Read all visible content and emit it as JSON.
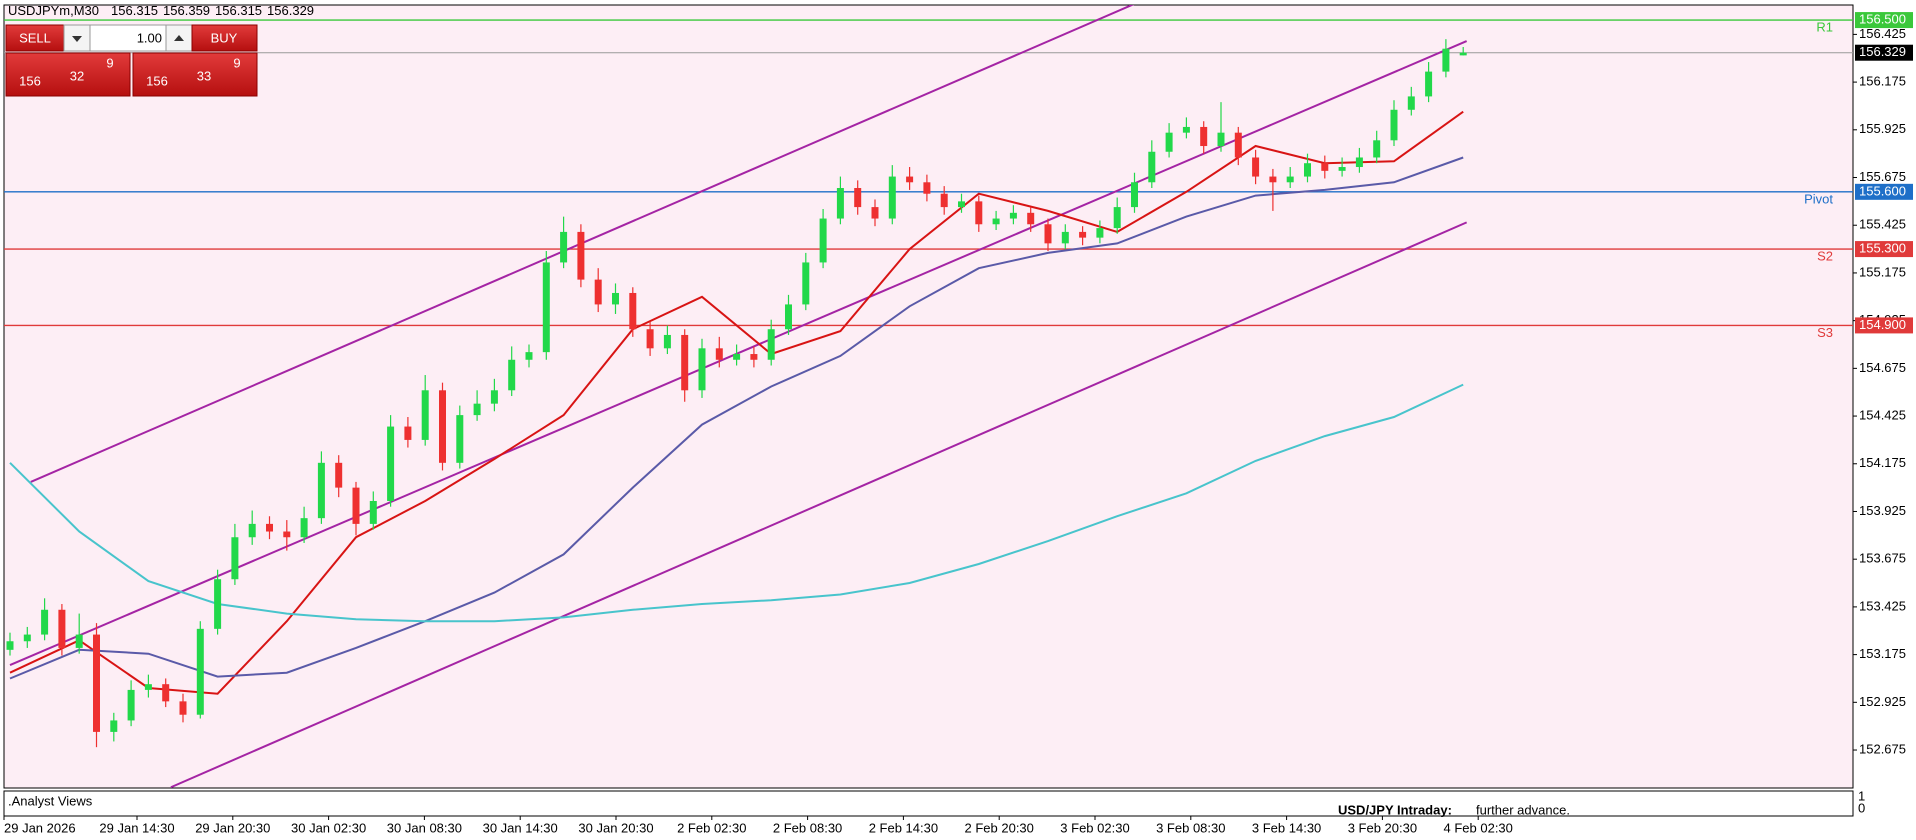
{
  "header": {
    "symbol": "USDJPYm,M30",
    "ohlc": [
      156.315,
      156.359,
      156.315,
      156.329
    ]
  },
  "trade_panel": {
    "sell": "SELL",
    "buy": "BUY",
    "volume": "1.00",
    "sell_price": {
      "big": "156",
      "pips": "32",
      "fraction": "9"
    },
    "buy_price": {
      "big": "156",
      "pips": "33",
      "fraction": "9"
    }
  },
  "indicator_pane": {
    "title": ".Analyst Views",
    "headline": "USD/JPY Intraday:",
    "text": "further advance.",
    "axis": [
      "1",
      "0"
    ]
  },
  "chart_data": {
    "type": "candlestick",
    "ylim": [
      152.476,
      156.579
    ],
    "yticks": [
      156.425,
      156.175,
      155.925,
      155.675,
      155.425,
      155.175,
      154.925,
      154.675,
      154.425,
      154.175,
      153.925,
      153.675,
      153.425,
      153.175,
      152.925,
      152.675
    ],
    "x_labels": [
      "29 Jan 2026",
      "29 Jan 14:30",
      "29 Jan 20:30",
      "30 Jan 02:30",
      "30 Jan 08:30",
      "30 Jan 14:30",
      "30 Jan 20:30",
      "2 Feb 02:30",
      "2 Feb 08:30",
      "2 Feb 14:30",
      "2 Feb 20:30",
      "3 Feb 02:30",
      "3 Feb 08:30",
      "3 Feb 14:30",
      "3 Feb 20:30",
      "4 Feb 02:30"
    ],
    "up_color": "#22d84a",
    "down_color": "#ee3030",
    "candles": [
      [
        153.2,
        153.29,
        153.17,
        153.245
      ],
      [
        153.245,
        153.32,
        153.21,
        153.28
      ],
      [
        153.28,
        153.47,
        153.25,
        153.41
      ],
      [
        153.41,
        153.44,
        153.17,
        153.21
      ],
      [
        153.21,
        153.39,
        153.18,
        153.28
      ],
      [
        153.28,
        153.34,
        152.69,
        152.77
      ],
      [
        152.77,
        152.87,
        152.72,
        152.83
      ],
      [
        152.83,
        153.04,
        152.8,
        152.99
      ],
      [
        152.99,
        153.07,
        152.95,
        153.02
      ],
      [
        153.02,
        153.05,
        152.9,
        152.93
      ],
      [
        152.93,
        152.97,
        152.82,
        152.86
      ],
      [
        152.86,
        153.35,
        152.84,
        153.31
      ],
      [
        153.31,
        153.62,
        153.28,
        153.57
      ],
      [
        153.57,
        153.86,
        153.54,
        153.79
      ],
      [
        153.79,
        153.93,
        153.75,
        153.86
      ],
      [
        153.86,
        153.9,
        153.78,
        153.82
      ],
      [
        153.82,
        153.88,
        153.72,
        153.79
      ],
      [
        153.79,
        153.95,
        153.76,
        153.89
      ],
      [
        153.89,
        154.24,
        153.86,
        154.18
      ],
      [
        154.18,
        154.22,
        154.0,
        154.05
      ],
      [
        154.05,
        154.08,
        153.8,
        153.86
      ],
      [
        153.86,
        154.03,
        153.83,
        153.98
      ],
      [
        153.98,
        154.43,
        153.95,
        154.37
      ],
      [
        154.37,
        154.42,
        154.26,
        154.3
      ],
      [
        154.3,
        154.64,
        154.27,
        154.56
      ],
      [
        154.56,
        154.6,
        154.14,
        154.18
      ],
      [
        154.18,
        154.48,
        154.15,
        154.43
      ],
      [
        154.43,
        154.56,
        154.4,
        154.49
      ],
      [
        154.49,
        154.62,
        154.45,
        154.56
      ],
      [
        154.56,
        154.79,
        154.53,
        154.72
      ],
      [
        154.72,
        154.8,
        154.68,
        154.76
      ],
      [
        154.76,
        155.29,
        154.72,
        155.23
      ],
      [
        155.23,
        155.47,
        155.2,
        155.39
      ],
      [
        155.39,
        155.43,
        155.1,
        155.14
      ],
      [
        155.14,
        155.2,
        154.97,
        155.01
      ],
      [
        155.01,
        155.12,
        154.96,
        155.07
      ],
      [
        155.07,
        155.1,
        154.84,
        154.88
      ],
      [
        154.88,
        154.92,
        154.74,
        154.78
      ],
      [
        154.78,
        154.9,
        154.75,
        154.85
      ],
      [
        154.85,
        154.88,
        154.5,
        154.56
      ],
      [
        154.56,
        154.83,
        154.52,
        154.78
      ],
      [
        154.78,
        154.84,
        154.68,
        154.72
      ],
      [
        154.72,
        154.8,
        154.69,
        154.75
      ],
      [
        154.75,
        154.79,
        154.68,
        154.72
      ],
      [
        154.72,
        154.93,
        154.69,
        154.88
      ],
      [
        154.88,
        155.06,
        154.85,
        155.01
      ],
      [
        155.01,
        155.28,
        154.98,
        155.23
      ],
      [
        155.23,
        155.51,
        155.2,
        155.46
      ],
      [
        155.46,
        155.68,
        155.43,
        155.62
      ],
      [
        155.62,
        155.66,
        155.48,
        155.52
      ],
      [
        155.52,
        155.56,
        155.42,
        155.46
      ],
      [
        155.46,
        155.74,
        155.43,
        155.68
      ],
      [
        155.68,
        155.73,
        155.61,
        155.65
      ],
      [
        155.65,
        155.69,
        155.55,
        155.59
      ],
      [
        155.59,
        155.63,
        155.48,
        155.52
      ],
      [
        155.52,
        155.59,
        155.49,
        155.55
      ],
      [
        155.55,
        155.58,
        155.39,
        155.43
      ],
      [
        155.43,
        155.5,
        155.4,
        155.46
      ],
      [
        155.46,
        155.53,
        155.43,
        155.49
      ],
      [
        155.49,
        155.52,
        155.39,
        155.43
      ],
      [
        155.43,
        155.46,
        155.29,
        155.33
      ],
      [
        155.33,
        155.43,
        155.3,
        155.39
      ],
      [
        155.39,
        155.42,
        155.32,
        155.36
      ],
      [
        155.36,
        155.45,
        155.33,
        155.41
      ],
      [
        155.41,
        155.57,
        155.38,
        155.52
      ],
      [
        155.52,
        155.7,
        155.49,
        155.65
      ],
      [
        155.65,
        155.87,
        155.62,
        155.81
      ],
      [
        155.81,
        155.96,
        155.78,
        155.91
      ],
      [
        155.91,
        155.99,
        155.88,
        155.94
      ],
      [
        155.94,
        155.97,
        155.8,
        155.84
      ],
      [
        155.84,
        156.07,
        155.81,
        155.91
      ],
      [
        155.91,
        155.94,
        155.74,
        155.78
      ],
      [
        155.78,
        155.82,
        155.64,
        155.68
      ],
      [
        155.68,
        155.72,
        155.5,
        155.65
      ],
      [
        155.65,
        155.73,
        155.62,
        155.68
      ],
      [
        155.68,
        155.8,
        155.65,
        155.75
      ],
      [
        155.75,
        155.79,
        155.67,
        155.71
      ],
      [
        155.71,
        155.78,
        155.68,
        155.73
      ],
      [
        155.73,
        155.83,
        155.7,
        155.78
      ],
      [
        155.78,
        155.92,
        155.75,
        155.87
      ],
      [
        155.87,
        156.08,
        155.84,
        156.03
      ],
      [
        156.03,
        156.15,
        156.0,
        156.1
      ],
      [
        156.1,
        156.28,
        156.07,
        156.23
      ],
      [
        156.23,
        156.4,
        156.2,
        156.35
      ],
      [
        156.315,
        156.359,
        156.315,
        156.329
      ]
    ],
    "ma_x": [
      0,
      4,
      8,
      12,
      16,
      20,
      24,
      28,
      32,
      36,
      40,
      44,
      48,
      52,
      56,
      60,
      64,
      68,
      72,
      76,
      80,
      84
    ],
    "moving_averages": [
      {
        "color": "#d81414",
        "values": [
          153.08,
          153.25,
          153.0,
          152.97,
          153.35,
          153.79,
          153.98,
          154.2,
          154.43,
          154.88,
          155.05,
          154.75,
          154.87,
          155.3,
          155.59,
          155.5,
          155.39,
          155.6,
          155.84,
          155.75,
          155.76,
          156.02
        ]
      },
      {
        "color": "#5a5aa8",
        "values": [
          153.05,
          153.2,
          153.18,
          153.06,
          153.08,
          153.21,
          153.35,
          153.5,
          153.7,
          154.05,
          154.38,
          154.58,
          154.74,
          155.0,
          155.2,
          155.28,
          155.33,
          155.47,
          155.58,
          155.61,
          155.65,
          155.78
        ]
      },
      {
        "color": "#48c4cc",
        "values": [
          154.18,
          153.82,
          153.56,
          153.44,
          153.39,
          153.36,
          153.35,
          153.35,
          153.37,
          153.41,
          153.44,
          153.46,
          153.49,
          153.55,
          153.65,
          153.77,
          153.9,
          154.02,
          154.19,
          154.32,
          154.42,
          154.59
        ]
      }
    ],
    "channel_color": "#a424a4",
    "channel": [
      {
        "x": [
          1.2,
          65
        ],
        "y": [
          154.08,
          156.585
        ]
      },
      {
        "x": [
          0,
          84.2
        ],
        "y": [
          153.12,
          156.39
        ]
      },
      {
        "x": [
          9.3,
          84.2
        ],
        "y": [
          152.48,
          155.44
        ]
      }
    ],
    "levels": [
      {
        "name": "R1",
        "value": 156.5,
        "label": "156.500",
        "color": "#3ac83a"
      },
      {
        "name": "Pivot",
        "value": 155.6,
        "label": "155.600",
        "color": "#1e6fc8"
      },
      {
        "name": "S2",
        "value": 155.3,
        "label": "155.300",
        "color": "#e03a3a"
      },
      {
        "name": "S3",
        "value": 154.9,
        "label": "154.900",
        "color": "#e03a3a"
      }
    ],
    "last_price": 156.329
  }
}
